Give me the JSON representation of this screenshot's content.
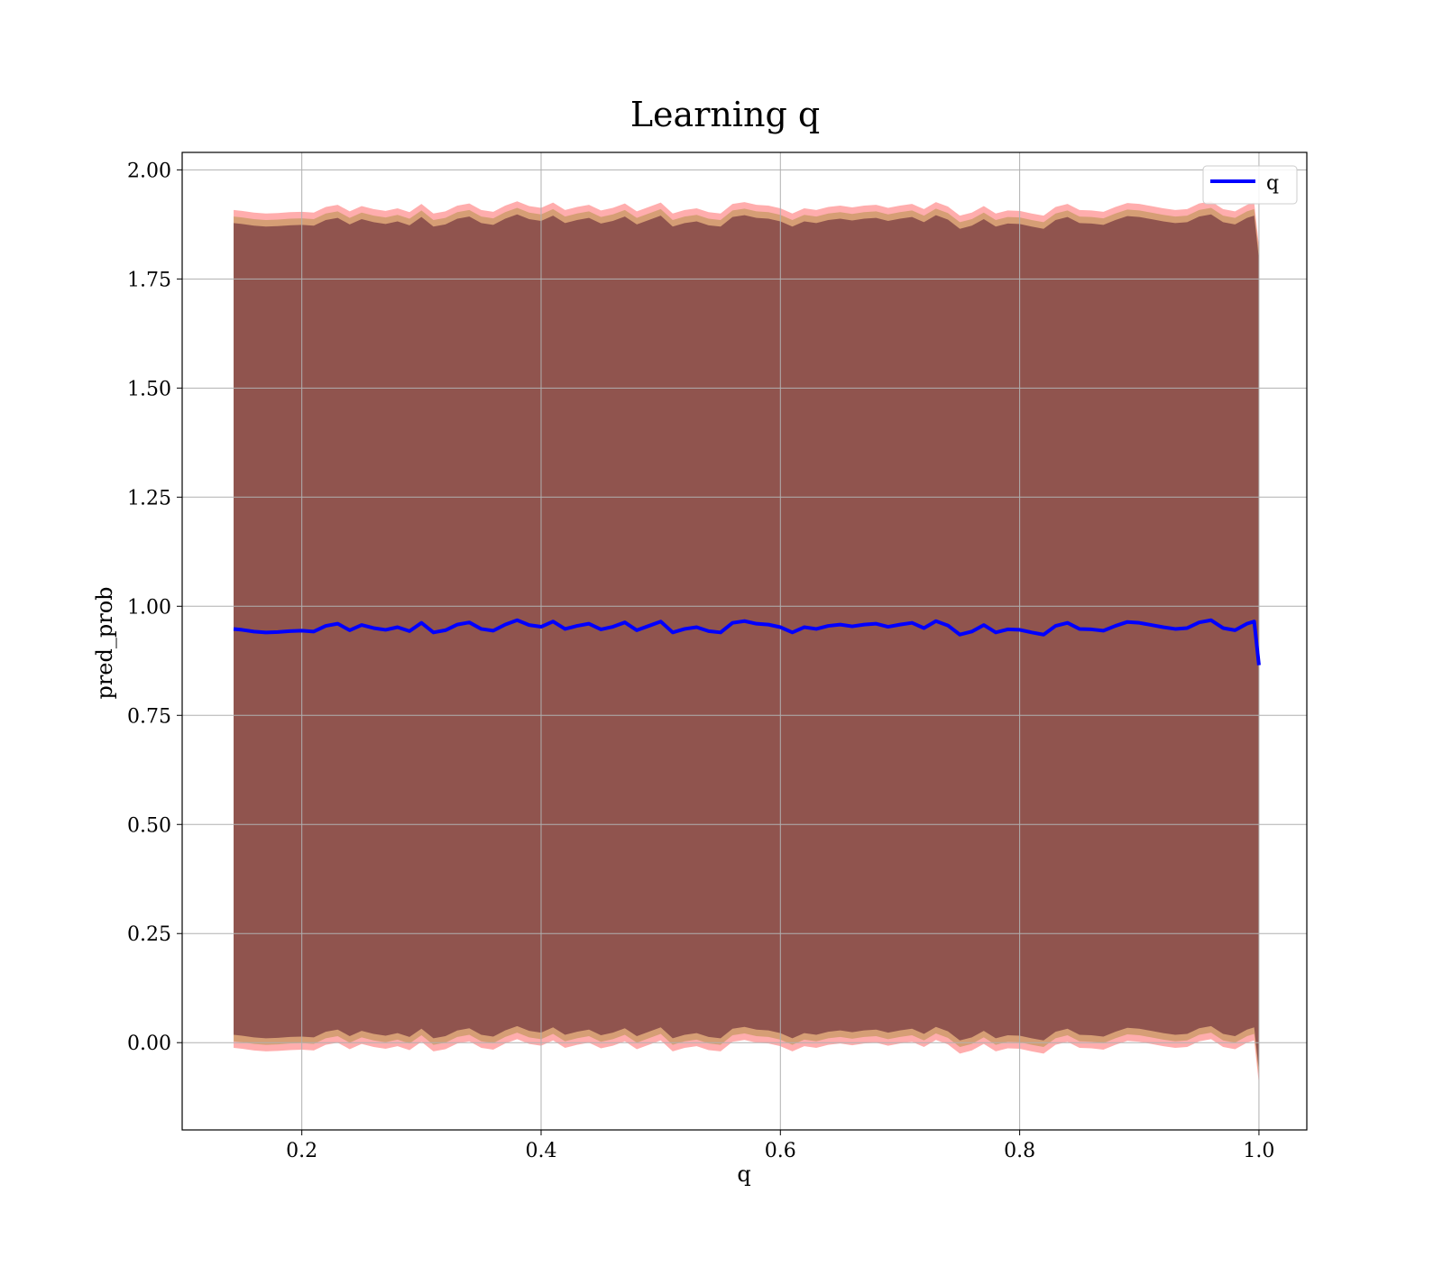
{
  "chart_data": {
    "type": "line",
    "title": "Learning q",
    "xlabel": "q",
    "ylabel": "pred_prob",
    "xlim": [
      0.1,
      1.04
    ],
    "ylim": [
      -0.2,
      2.04
    ],
    "xticks": [
      0.2,
      0.4,
      0.6,
      0.8,
      1.0
    ],
    "xtick_labels": [
      "0.2",
      "0.4",
      "0.6",
      "0.8",
      "1.0"
    ],
    "yticks": [
      0.0,
      0.25,
      0.5,
      0.75,
      1.0,
      1.25,
      1.5,
      1.75,
      2.0
    ],
    "ytick_labels": [
      "0.00",
      "0.25",
      "0.50",
      "0.75",
      "1.00",
      "1.25",
      "1.50",
      "1.75",
      "2.00"
    ],
    "grid": true,
    "legend_position": "top-right",
    "series": [
      {
        "name": "q",
        "color": "#0000ff",
        "x": [
          0.143,
          0.15,
          0.16,
          0.17,
          0.18,
          0.19,
          0.2,
          0.21,
          0.22,
          0.23,
          0.24,
          0.25,
          0.26,
          0.27,
          0.28,
          0.29,
          0.3,
          0.31,
          0.32,
          0.33,
          0.34,
          0.35,
          0.36,
          0.37,
          0.38,
          0.39,
          0.4,
          0.41,
          0.42,
          0.43,
          0.44,
          0.45,
          0.46,
          0.47,
          0.48,
          0.49,
          0.5,
          0.51,
          0.52,
          0.53,
          0.54,
          0.55,
          0.56,
          0.57,
          0.58,
          0.59,
          0.6,
          0.61,
          0.62,
          0.63,
          0.64,
          0.65,
          0.66,
          0.67,
          0.68,
          0.69,
          0.7,
          0.71,
          0.72,
          0.73,
          0.74,
          0.75,
          0.76,
          0.77,
          0.78,
          0.79,
          0.8,
          0.81,
          0.82,
          0.83,
          0.84,
          0.85,
          0.86,
          0.87,
          0.88,
          0.89,
          0.9,
          0.91,
          0.92,
          0.93,
          0.94,
          0.95,
          0.96,
          0.97,
          0.98,
          0.99,
          0.996,
          1.0
        ],
        "y": [
          0.948,
          0.946,
          0.942,
          0.94,
          0.941,
          0.943,
          0.944,
          0.942,
          0.955,
          0.96,
          0.945,
          0.957,
          0.95,
          0.946,
          0.952,
          0.943,
          0.962,
          0.94,
          0.945,
          0.958,
          0.963,
          0.948,
          0.944,
          0.958,
          0.968,
          0.957,
          0.953,
          0.965,
          0.948,
          0.955,
          0.96,
          0.947,
          0.953,
          0.963,
          0.945,
          0.955,
          0.965,
          0.94,
          0.948,
          0.952,
          0.943,
          0.94,
          0.962,
          0.966,
          0.96,
          0.958,
          0.952,
          0.94,
          0.952,
          0.948,
          0.955,
          0.958,
          0.954,
          0.958,
          0.96,
          0.953,
          0.958,
          0.962,
          0.95,
          0.966,
          0.956,
          0.935,
          0.942,
          0.957,
          0.94,
          0.947,
          0.946,
          0.94,
          0.935,
          0.955,
          0.962,
          0.948,
          0.947,
          0.944,
          0.955,
          0.964,
          0.962,
          0.957,
          0.952,
          0.948,
          0.95,
          0.963,
          0.968,
          0.95,
          0.945,
          0.96,
          0.965,
          0.865
        ]
      }
    ],
    "bands": [
      {
        "color": "#ff0000",
        "opacity": 0.32,
        "half_width": 0.96
      },
      {
        "color": "#7f7f00",
        "opacity": 0.32,
        "half_width": 0.945
      },
      {
        "color": "#4a0a28",
        "opacity": 0.5,
        "half_width": 0.93
      }
    ]
  }
}
